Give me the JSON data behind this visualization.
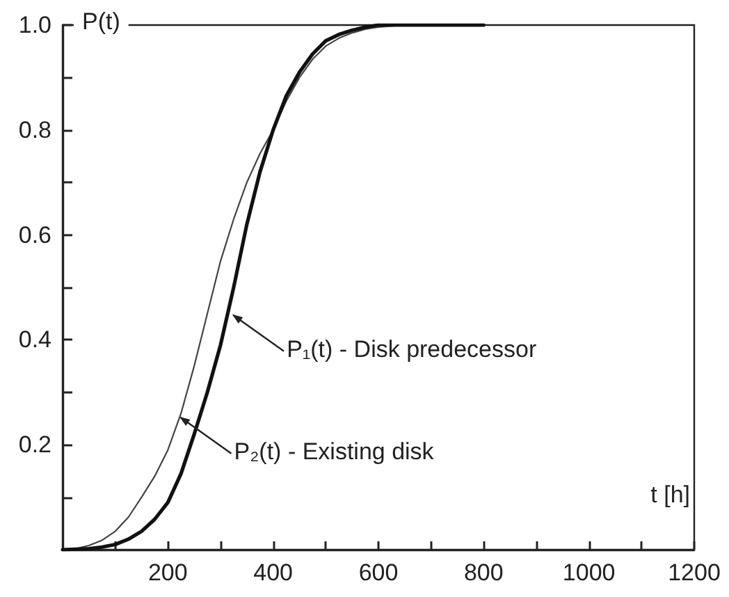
{
  "chart_data": {
    "type": "line",
    "xlabel": "t [h]",
    "ylabel": "P(t)",
    "series": [
      {
        "color": "#111111",
        "x": [
          0,
          50,
          75,
          100,
          125,
          150,
          175,
          200,
          225,
          250,
          275,
          300,
          325,
          350,
          375,
          400,
          425,
          450,
          475,
          500,
          525,
          550,
          575,
          600,
          650,
          700,
          800
        ],
        "values": [
          0,
          0.002,
          0.005,
          0.01,
          0.02,
          0.035,
          0.058,
          0.09,
          0.145,
          0.22,
          0.3,
          0.39,
          0.5,
          0.62,
          0.72,
          0.8,
          0.865,
          0.91,
          0.945,
          0.97,
          0.982,
          0.99,
          0.996,
          1,
          1,
          1,
          1
        ]
      },
      {
        "color": "#444444",
        "x": [
          0,
          25,
          50,
          75,
          100,
          125,
          150,
          175,
          200,
          225,
          250,
          275,
          300,
          325,
          350,
          375,
          400,
          425,
          450,
          475,
          500,
          525,
          550,
          575,
          600,
          650,
          700,
          800
        ],
        "values": [
          0,
          0.002,
          0.008,
          0.018,
          0.035,
          0.062,
          0.1,
          0.14,
          0.19,
          0.26,
          0.35,
          0.45,
          0.55,
          0.63,
          0.7,
          0.755,
          0.8,
          0.855,
          0.9,
          0.935,
          0.96,
          0.975,
          0.985,
          0.992,
          0.996,
          1,
          1,
          1
        ]
      }
    ],
    "xlim": [
      0,
      1200
    ],
    "ylim": [
      0,
      1
    ],
    "xticks": [
      {
        "value": 100,
        "label": null
      },
      200,
      {
        "value": 300,
        "label": null
      },
      400,
      {
        "value": 500,
        "label": null
      },
      600,
      {
        "value": 700,
        "label": null
      },
      800,
      {
        "value": 900,
        "label": null
      },
      1000,
      {
        "value": 1100,
        "label": null
      },
      1200
    ],
    "yticks": [
      {
        "value": 0.1,
        "label": null
      },
      0.2,
      {
        "value": 0.3,
        "label": null
      },
      0.4,
      {
        "value": 0.5,
        "label": null
      },
      0.6,
      {
        "value": 0.7,
        "label": null
      },
      0.8,
      {
        "value": 0.9,
        "label": null
      },
      {
        "value": 1,
        "label": "1.0"
      }
    ],
    "annotations": [
      {
        "text": "P₁(t) - Disk predecessor",
        "x": 320,
        "y": 0.45
      },
      {
        "text": "P₂(t) - Existing disk",
        "x": 220,
        "y": 0.255
      }
    ],
    "marker": "none",
    "line_style": "solid"
  }
}
